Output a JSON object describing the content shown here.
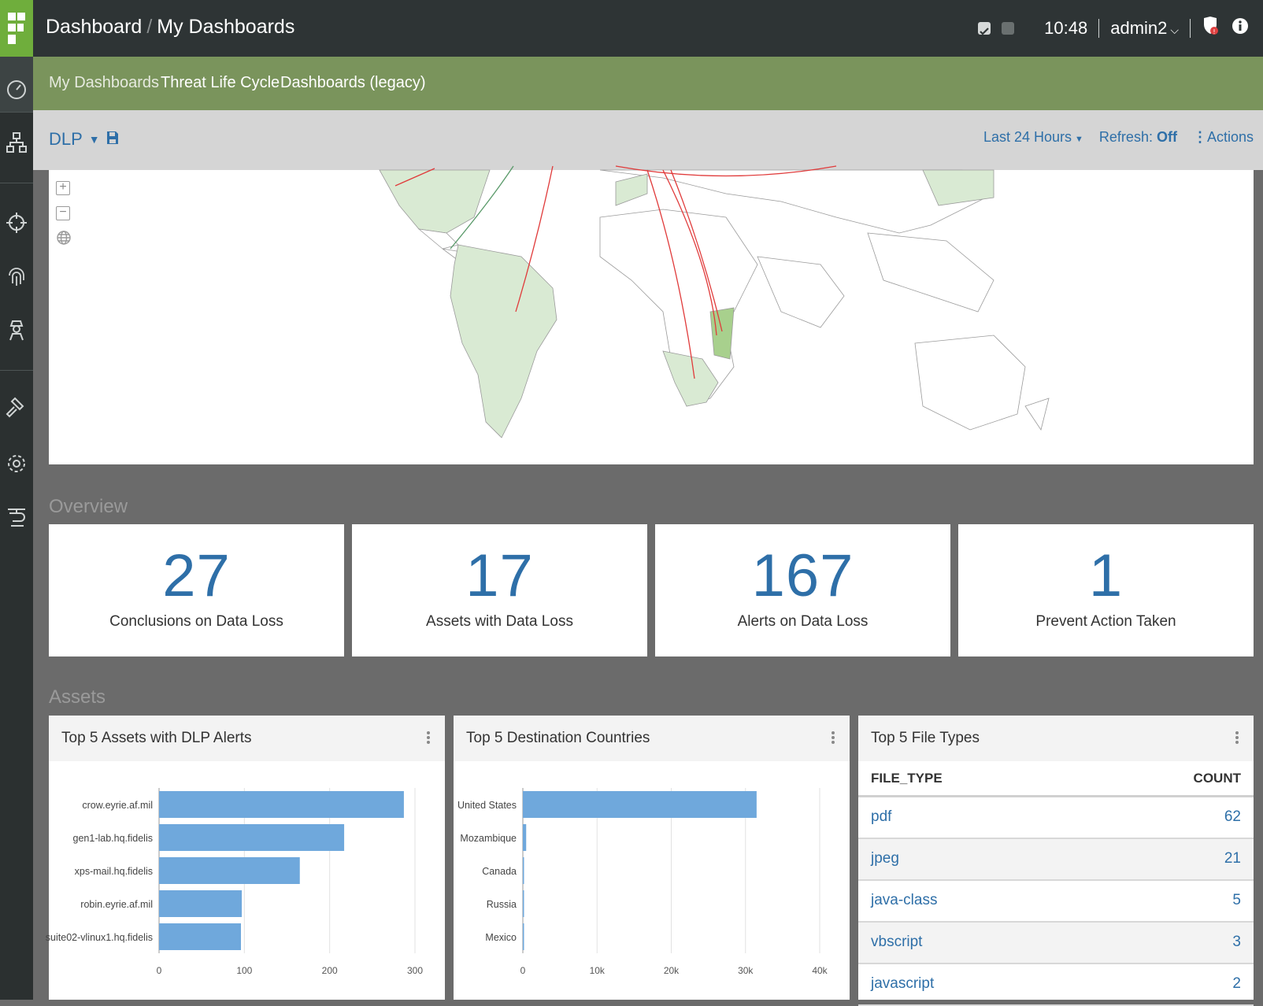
{
  "header": {
    "crumb_root": "Dashboard",
    "crumb_sep": "/",
    "crumb_current": "My Dashboards",
    "time": "10:48",
    "user": "admin2"
  },
  "nav": {
    "tabs": [
      {
        "label": "My Dashboards"
      },
      {
        "label": "Threat Life Cycle"
      },
      {
        "label": "Dashboards (legacy)"
      }
    ]
  },
  "toolbar": {
    "dashboard_name": "DLP",
    "time_range": "Last 24 Hours",
    "refresh_label": "Refresh:",
    "refresh_value": "Off",
    "actions": "Actions"
  },
  "sections": {
    "overview": "Overview",
    "assets": "Assets"
  },
  "kpis": [
    {
      "value": "27",
      "label": "Conclusions on Data Loss"
    },
    {
      "value": "17",
      "label": "Assets with Data Loss"
    },
    {
      "value": "167",
      "label": "Alerts on Data Loss"
    },
    {
      "value": "1",
      "label": "Prevent Action Taken"
    }
  ],
  "panels": {
    "assets": {
      "title": "Top 5 Assets with DLP Alerts"
    },
    "countries": {
      "title": "Top 5 Destination Countries"
    },
    "filetypes": {
      "title": "Top 5 File Types",
      "col_type": "FILE_TYPE",
      "col_count": "COUNT",
      "rows": [
        {
          "type": "pdf",
          "count": "62"
        },
        {
          "type": "jpeg",
          "count": "21"
        },
        {
          "type": "java-class",
          "count": "5"
        },
        {
          "type": "vbscript",
          "count": "3"
        },
        {
          "type": "javascript",
          "count": "2"
        }
      ]
    }
  },
  "chart_data": [
    {
      "type": "bar",
      "orientation": "horizontal",
      "categories": [
        "crow.eyrie.af.mil",
        "gen1-lab.hq.fidelis",
        "xps-mail.hq.fidelis",
        "robin.eyrie.af.mil",
        "suite02-vlinux1.hq.fidelis"
      ],
      "values": [
        287,
        217,
        165,
        97,
        96
      ],
      "xlim": [
        0,
        300
      ],
      "xticks": [
        "0",
        "100",
        "200",
        "300"
      ],
      "grid": true,
      "color": "#6fa8dc"
    },
    {
      "type": "bar",
      "orientation": "horizontal",
      "categories": [
        "United States",
        "Mozambique",
        "Canada",
        "Russia",
        "Mexico"
      ],
      "values": [
        31500,
        450,
        150,
        100,
        80
      ],
      "xlim": [
        0,
        40000
      ],
      "xticks": [
        "0",
        "10k",
        "20k",
        "30k",
        "40k"
      ],
      "grid": true,
      "color": "#6fa8dc"
    }
  ],
  "colors": {
    "accent": "#2e6fa8",
    "brand_green": "#6fae3c",
    "nav_green": "#7a945c",
    "bar": "#6fa8dc",
    "map_line": "#e03a3a"
  }
}
